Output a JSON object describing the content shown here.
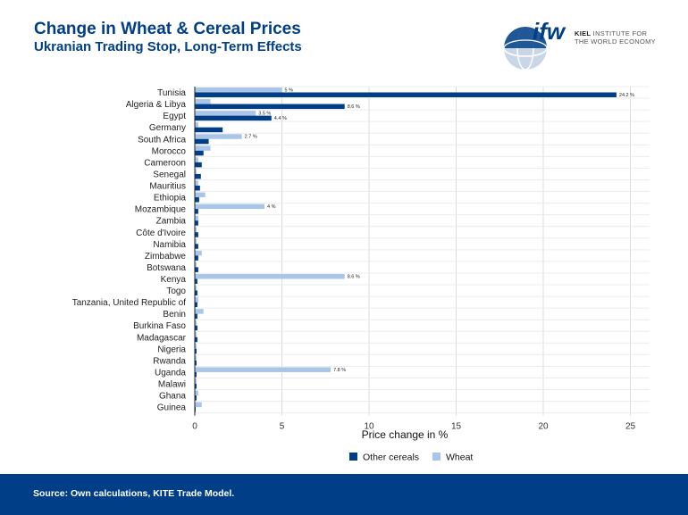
{
  "header": {
    "title": "Change in Wheat & Cereal Prices",
    "subtitle": "Ukranian Trading Stop, Long-Term Effects"
  },
  "logo": {
    "mark": "ifw",
    "line1_bold": "KIEL",
    "line1_rest": " INSTITUTE FOR",
    "line2": "THE WORLD ECONOMY"
  },
  "footer": {
    "source": "Source: Own calculations, KITE Trade Model."
  },
  "colors": {
    "other_cereals": "#003f87",
    "wheat": "#a9c6e8",
    "brand": "#003f87"
  },
  "chart_data": {
    "type": "bar",
    "orientation": "horizontal",
    "categories": [
      "Tunisia",
      "Algeria & Libya",
      "Egypt",
      "Germany",
      "South Africa",
      "Morocco",
      "Cameroon",
      "Senegal",
      "Mauritius",
      "Ethiopia",
      "Mozambique",
      "Zambia",
      "Côte d'Ivoire",
      "Namibia",
      "Zimbabwe",
      "Botswana",
      "Kenya",
      "Togo",
      "Tanzania, United Republic of",
      "Benin",
      "Burkina Faso",
      "Madagascar",
      "Nigeria",
      "Rwanda",
      "Uganda",
      "Malawi",
      "Ghana",
      "Guinea"
    ],
    "series": [
      {
        "name": "Other cereals",
        "color": "#003f87",
        "values": [
          24.2,
          8.6,
          4.4,
          1.6,
          0.8,
          0.5,
          0.4,
          0.35,
          0.3,
          0.25,
          0.2,
          0.2,
          0.2,
          0.2,
          0.2,
          0.2,
          0.15,
          0.15,
          0.15,
          0.15,
          0.15,
          0.15,
          0.1,
          0.1,
          0.1,
          0.1,
          0.1,
          0.05
        ],
        "labels": [
          "24.2 %",
          "8.6 %",
          "4.4 %",
          "",
          "",
          "",
          "",
          "",
          "",
          "",
          "",
          "",
          "",
          "",
          "",
          "",
          "",
          "",
          "",
          "",
          "",
          "",
          "",
          "",
          "",
          "",
          "",
          ""
        ]
      },
      {
        "name": "Wheat",
        "color": "#a9c6e8",
        "values": [
          5,
          0.9,
          3.5,
          0.2,
          2.7,
          0.9,
          0.2,
          0.1,
          0.2,
          0.6,
          4,
          0.2,
          0.1,
          0.1,
          0.4,
          0.1,
          8.6,
          0.1,
          0.2,
          0.5,
          0.1,
          0.1,
          0.1,
          0.1,
          7.8,
          0.1,
          0.2,
          0.4
        ],
        "labels": [
          "5 %",
          "",
          "3.5 %",
          "",
          "2.7 %",
          "",
          "",
          "",
          "",
          "",
          "4 %",
          "",
          "",
          "",
          "",
          "",
          "8.6 %",
          "",
          "",
          "",
          "",
          "",
          "",
          "",
          "7.8 %",
          "",
          "",
          ""
        ]
      }
    ],
    "xlabel": "Price change in %",
    "xlim": [
      0,
      26
    ],
    "xticks": [
      0,
      5,
      10,
      15,
      20,
      25
    ],
    "grid": true,
    "legend_position": "bottom"
  }
}
